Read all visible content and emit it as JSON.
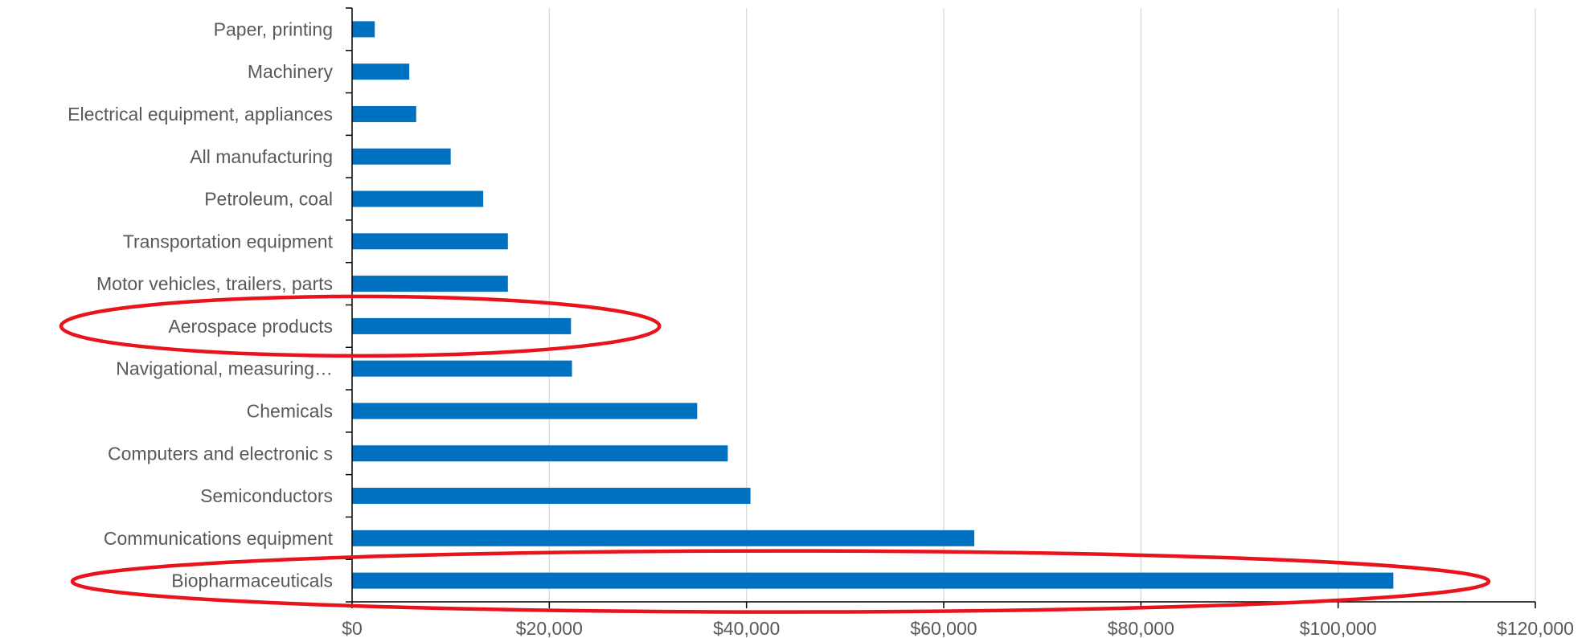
{
  "chart_data": {
    "type": "bar",
    "orientation": "horizontal",
    "categories": [
      "Paper, printing",
      "Machinery",
      "Electrical equipment, appliances",
      "All manufacturing",
      "Petroleum, coal",
      "Transportation equipment",
      "Motor vehicles, trailers, parts",
      "Aerospace products",
      "Navigational, measuring…",
      "Chemicals",
      "Computers and electronic s",
      "Semiconductors",
      "Communications equipment",
      "Biopharmaceuticals"
    ],
    "values": [
      2300,
      5800,
      6500,
      10000,
      13300,
      15800,
      15800,
      22200,
      22300,
      35000,
      38100,
      40400,
      63100,
      105600
    ],
    "xlim": [
      0,
      120000
    ],
    "xticks": [
      0,
      20000,
      40000,
      60000,
      80000,
      100000,
      120000
    ],
    "xtick_labels": [
      "$0",
      "$20,000",
      "$40,000",
      "$60,000",
      "$80,000",
      "$100,000",
      "$120,000"
    ],
    "gridlines": "vertical",
    "highlighted": [
      "Aerospace products",
      "Biopharmaceuticals"
    ],
    "colors": {
      "bar": "#0070c0",
      "highlight": "#e8131b",
      "grid": "#d9d9d9",
      "axis": "#000000",
      "text": "#595959"
    }
  }
}
